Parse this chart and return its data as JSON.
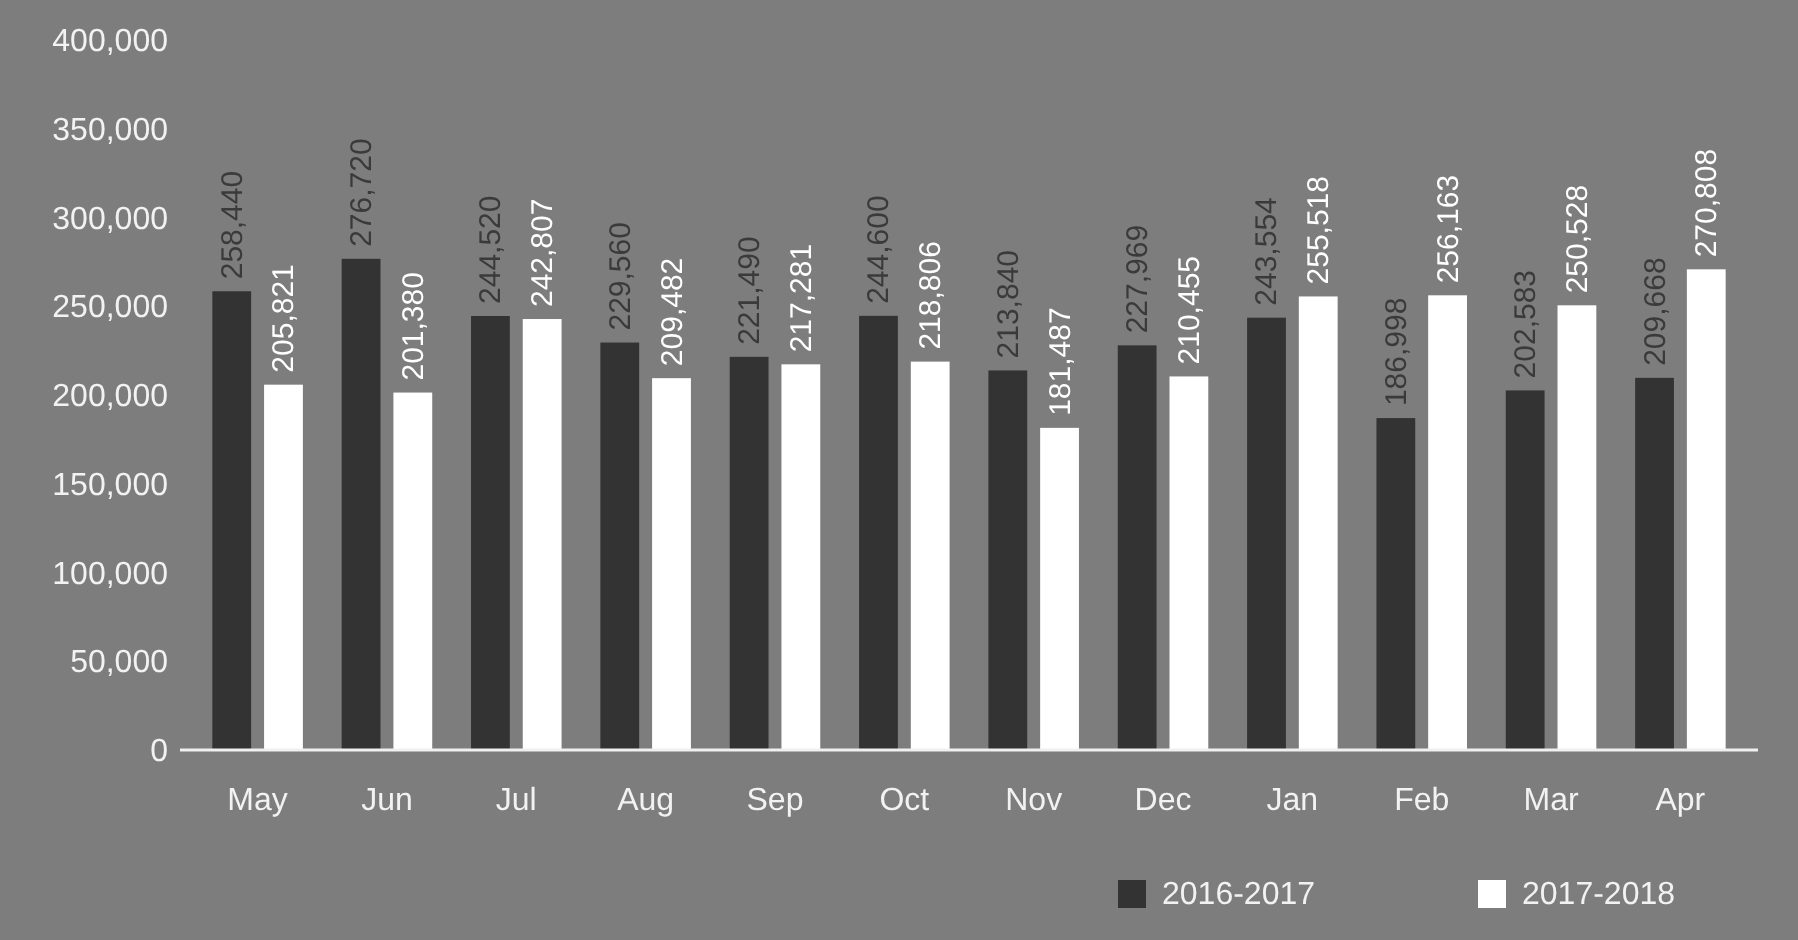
{
  "chart_data": {
    "type": "bar",
    "categories": [
      "May",
      "Jun",
      "Jul",
      "Aug",
      "Sep",
      "Oct",
      "Nov",
      "Dec",
      "Jan",
      "Feb",
      "Mar",
      "Apr"
    ],
    "series": [
      {
        "name": "2016-2017",
        "color": "#333333",
        "values": [
          258440,
          276720,
          244520,
          229560,
          221490,
          244600,
          213840,
          227969,
          243554,
          186998,
          202583,
          209668
        ],
        "value_labels": [
          "258,440",
          "276,720",
          "244,520",
          "229,560",
          "221,490",
          "244,600",
          "213,840",
          "227,969",
          "243,554",
          "186,998",
          "202,583",
          "209,668"
        ]
      },
      {
        "name": "2017-2018",
        "color": "#ffffff",
        "values": [
          205821,
          201380,
          242807,
          209482,
          217281,
          218806,
          181487,
          210455,
          255518,
          256163,
          250528,
          270808
        ],
        "value_labels": [
          "205,821",
          "201,380",
          "242,807",
          "209,482",
          "217,281",
          "218,806",
          "181,487",
          "210,455",
          "255,518",
          "256,163",
          "250,528",
          "270,808"
        ]
      }
    ],
    "ylim": [
      0,
      400000
    ],
    "yticks": [
      {
        "value": 0,
        "label": "0"
      },
      {
        "value": 50000,
        "label": "50,000"
      },
      {
        "value": 100000,
        "label": "100,000"
      },
      {
        "value": 150000,
        "label": "150,000"
      },
      {
        "value": 200000,
        "label": "200,000"
      },
      {
        "value": 250000,
        "label": "250,000"
      },
      {
        "value": 300000,
        "label": "300,000"
      },
      {
        "value": 350000,
        "label": "350,000"
      },
      {
        "value": 400000,
        "label": "400,000"
      }
    ],
    "legend": "bottom right"
  }
}
